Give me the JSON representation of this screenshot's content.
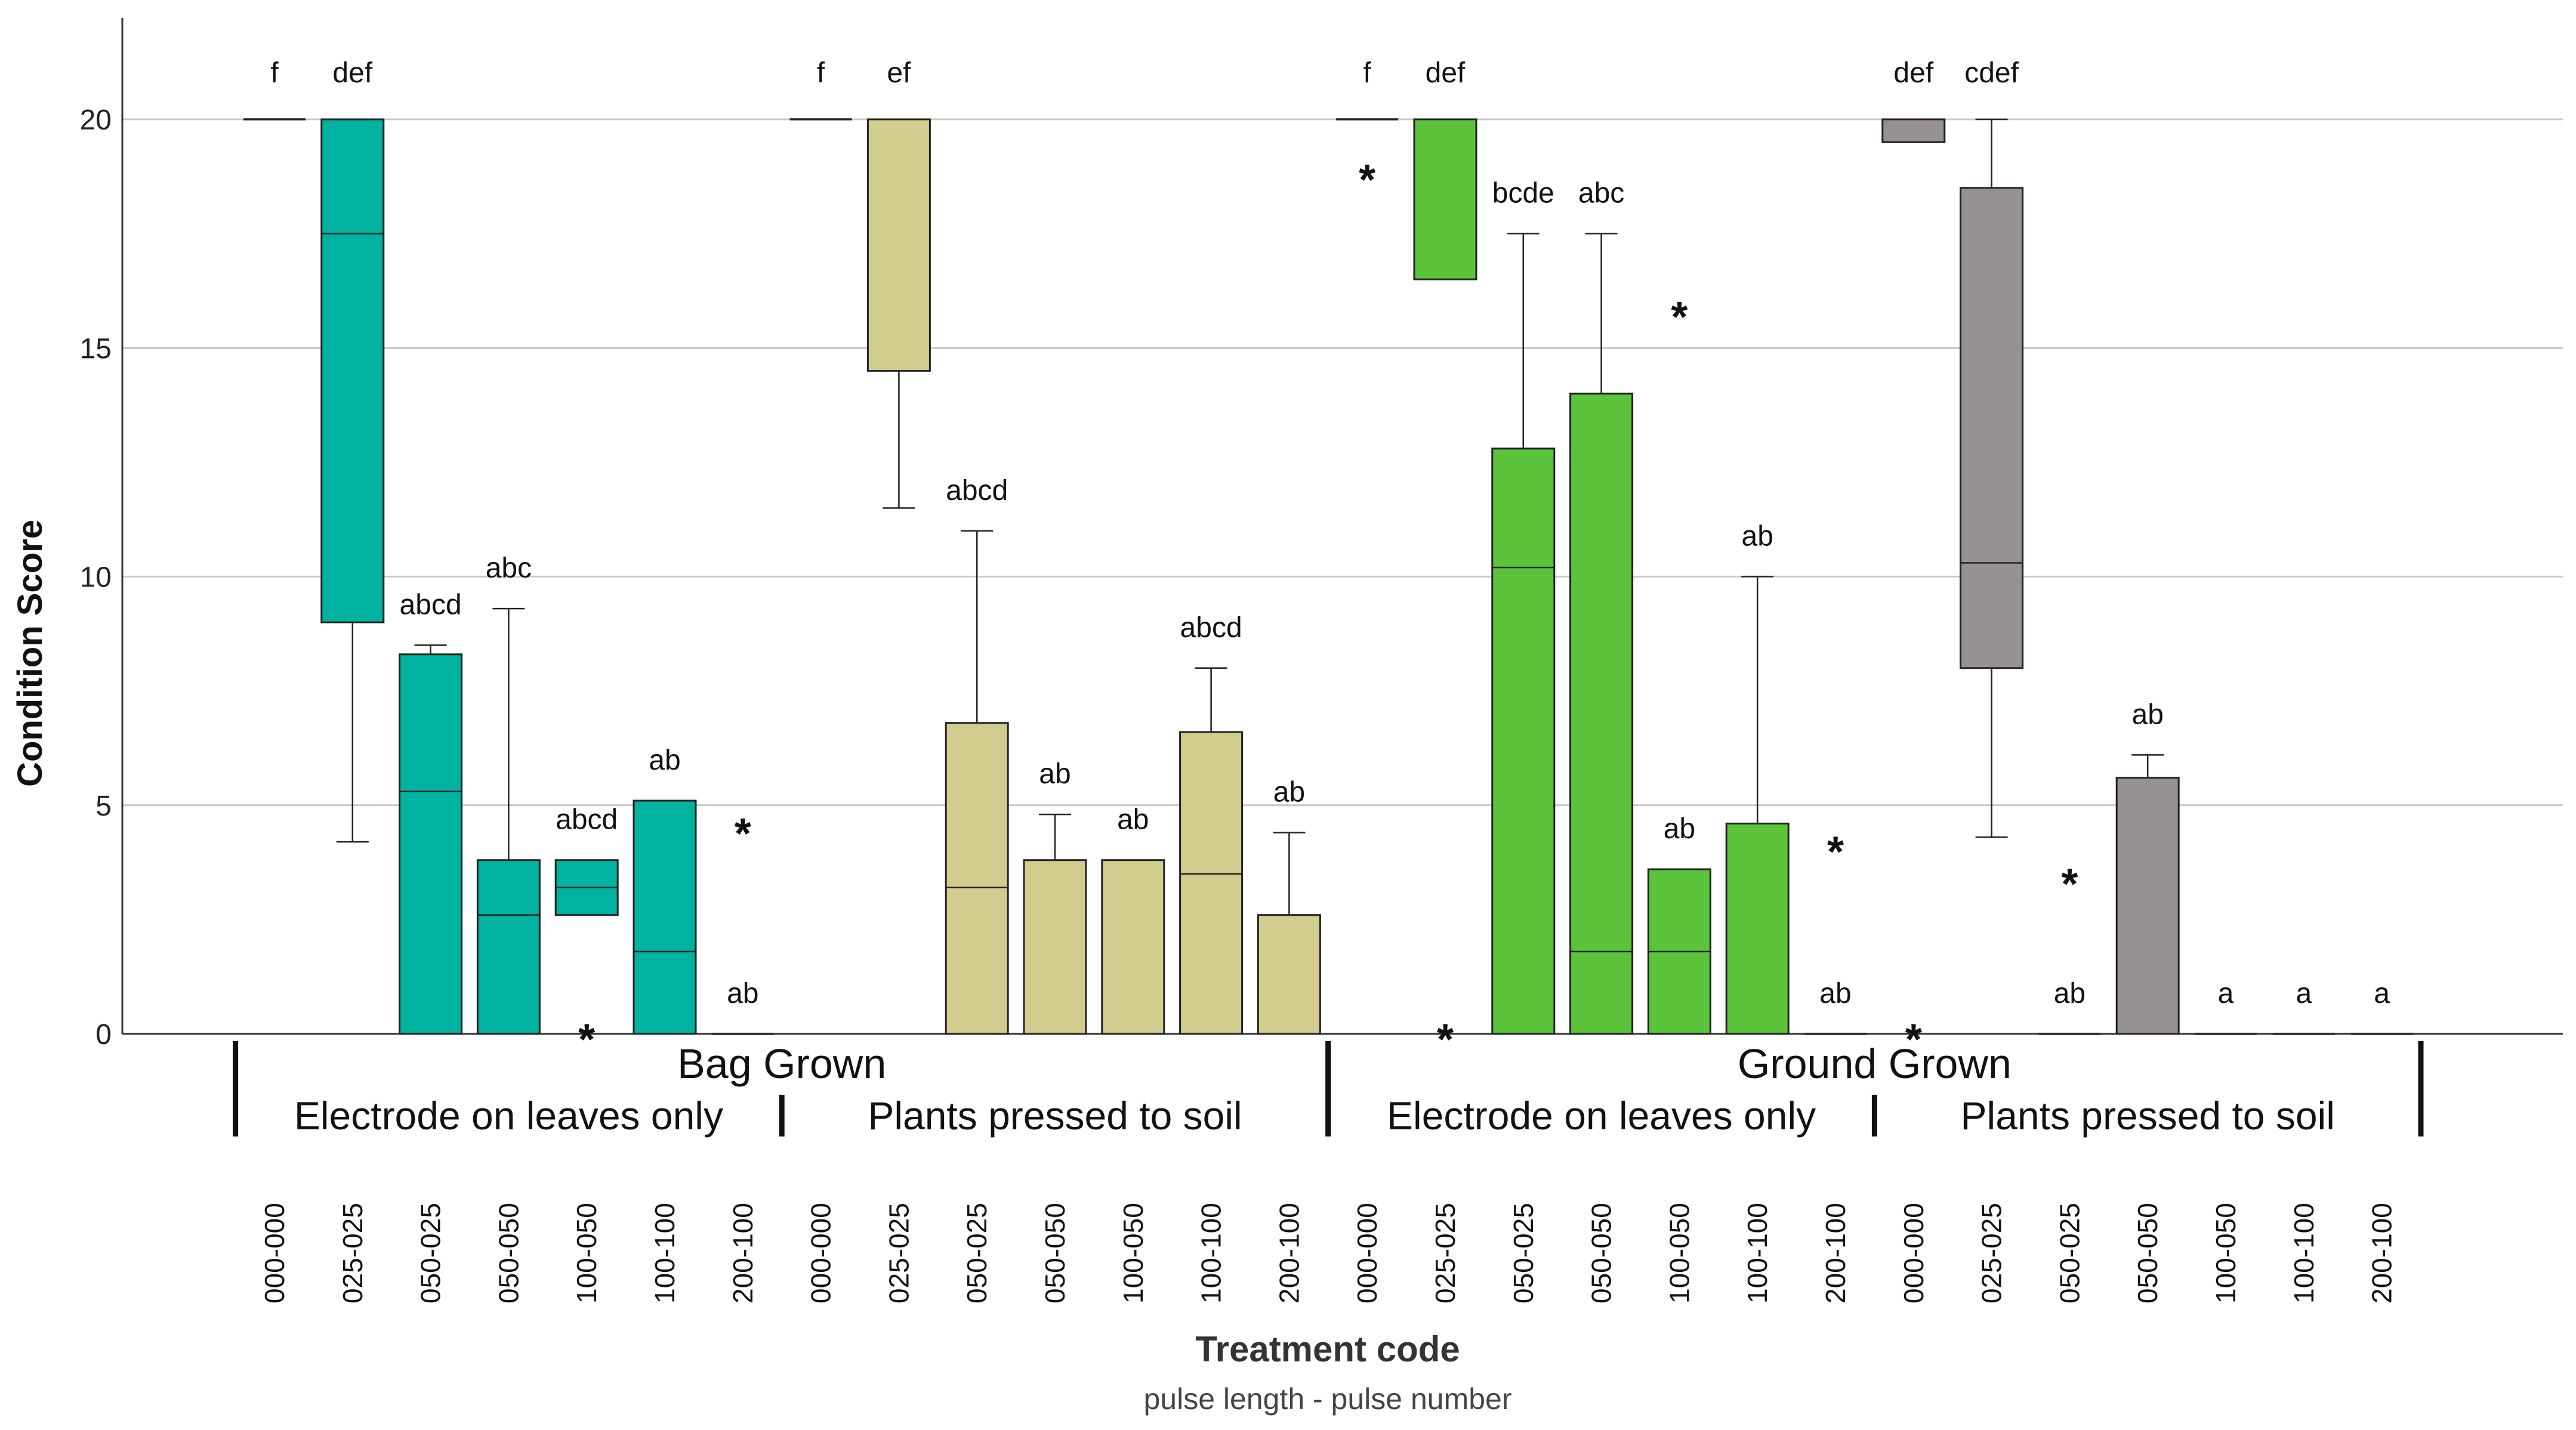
{
  "colors": {
    "bag_leaves": "#00b2a0",
    "bag_soil": "#d2cc8f",
    "ground_leaves": "#5cc43a",
    "ground_soil": "#979191",
    "grid": "#c8c8c8",
    "axis": "#333333"
  },
  "chart_data": {
    "type": "boxplot",
    "title": "",
    "xlabel": "Treatment code",
    "xlabel_sub": "pulse length - pulse number",
    "ylabel": "Condition Score",
    "ylim": [
      0,
      22
    ],
    "yticks": [
      0,
      5,
      10,
      15,
      20
    ],
    "grid": true,
    "outlier_marker": "*",
    "groups": [
      {
        "label": "Bag Grown",
        "subgroups": [
          {
            "label": "Electrode on leaves only",
            "color": "#00b2a0"
          },
          {
            "label": "Plants pressed to soil",
            "color": "#d2cc8f"
          }
        ]
      },
      {
        "label": "Ground Grown",
        "subgroups": [
          {
            "label": "Electrode on leaves only",
            "color": "#5cc43a"
          },
          {
            "label": "Plants pressed to soil",
            "color": "#979191"
          }
        ]
      }
    ],
    "series": [
      {
        "group": "Bag Grown",
        "subgroup": "Electrode on leaves only",
        "color": "#00b2a0",
        "items": [
          {
            "code": "000-000",
            "letter": "f",
            "q1": 20,
            "median": 20,
            "q3": 20,
            "min": 20,
            "max": 20,
            "outliers": []
          },
          {
            "code": "025-025",
            "letter": "def",
            "q1": 9,
            "median": 17.5,
            "q3": 20,
            "min": 4.2,
            "max": 20,
            "outliers": []
          },
          {
            "code": "050-025",
            "letter": "abcd",
            "q1": 0,
            "median": 5.3,
            "q3": 8.3,
            "min": 0,
            "max": 8.5,
            "outliers": []
          },
          {
            "code": "050-050",
            "letter": "abc",
            "q1": 0,
            "median": 2.6,
            "q3": 3.8,
            "min": 0,
            "max": 9.3,
            "outliers": []
          },
          {
            "code": "100-050",
            "letter": "abcd",
            "q1": 2.6,
            "median": 3.2,
            "q3": 3.8,
            "min": 2.6,
            "max": 3.8,
            "outliers": [
              0
            ]
          },
          {
            "code": "100-100",
            "letter": "ab",
            "q1": 0,
            "median": 1.8,
            "q3": 5.1,
            "min": 0,
            "max": 5.1,
            "outliers": []
          },
          {
            "code": "200-100",
            "letter": "ab",
            "q1": 0,
            "median": 0,
            "q3": 0,
            "min": 0,
            "max": 0,
            "outliers": [
              4.5
            ]
          }
        ]
      },
      {
        "group": "Bag Grown",
        "subgroup": "Plants pressed to soil",
        "color": "#d2cc8f",
        "items": [
          {
            "code": "000-000",
            "letter": "f",
            "q1": 20,
            "median": 20,
            "q3": 20,
            "min": 20,
            "max": 20,
            "outliers": []
          },
          {
            "code": "025-025",
            "letter": "ef",
            "q1": 14.5,
            "median": 20,
            "q3": 20,
            "min": 11.5,
            "max": 20,
            "outliers": []
          },
          {
            "code": "050-025",
            "letter": "abcd",
            "q1": 0,
            "median": 3.2,
            "q3": 6.8,
            "min": 0,
            "max": 11,
            "outliers": []
          },
          {
            "code": "050-050",
            "letter": "ab",
            "q1": 0,
            "median": 3.8,
            "q3": 3.8,
            "min": 0,
            "max": 4.8,
            "outliers": []
          },
          {
            "code": "100-050",
            "letter": "ab",
            "q1": 0,
            "median": 3.8,
            "q3": 3.8,
            "min": 0,
            "max": 3.8,
            "outliers": []
          },
          {
            "code": "100-100",
            "letter": "abcd",
            "q1": 0,
            "median": 3.5,
            "q3": 6.6,
            "min": 0,
            "max": 8,
            "outliers": []
          },
          {
            "code": "200-100",
            "letter": "ab",
            "q1": 0,
            "median": 2.6,
            "q3": 2.6,
            "min": 0,
            "max": 4.4,
            "outliers": []
          }
        ]
      },
      {
        "group": "Ground Grown",
        "subgroup": "Electrode on leaves only",
        "color": "#5cc43a",
        "items": [
          {
            "code": "000-000",
            "letter": "f",
            "q1": 20,
            "median": 20,
            "q3": 20,
            "min": 20,
            "max": 20,
            "outliers": [
              18.8
            ]
          },
          {
            "code": "025-025",
            "letter": "def",
            "q1": 16.5,
            "median": 20,
            "q3": 20,
            "min": 16.5,
            "max": 20,
            "outliers": [
              0
            ]
          },
          {
            "code": "050-025",
            "letter": "bcde",
            "q1": 0,
            "median": 10.2,
            "q3": 12.8,
            "min": 0,
            "max": 17.5,
            "outliers": []
          },
          {
            "code": "050-050",
            "letter": "abc",
            "q1": 0,
            "median": 1.8,
            "q3": 14,
            "min": 0,
            "max": 17.5,
            "outliers": []
          },
          {
            "code": "100-050",
            "letter": "ab",
            "q1": 0,
            "median": 1.8,
            "q3": 3.6,
            "min": 0,
            "max": 3.6,
            "outliers": [
              15.8
            ]
          },
          {
            "code": "100-100",
            "letter": "ab",
            "q1": 0,
            "median": 0,
            "q3": 4.6,
            "min": 0,
            "max": 10,
            "outliers": []
          },
          {
            "code": "200-100",
            "letter": "ab",
            "q1": 0,
            "median": 0,
            "q3": 0,
            "min": 0,
            "max": 0,
            "outliers": [
              4.1
            ]
          }
        ]
      },
      {
        "group": "Ground Grown",
        "subgroup": "Plants pressed to soil",
        "color": "#979191",
        "items": [
          {
            "code": "000-000",
            "letter": "def",
            "q1": 19.5,
            "median": 20,
            "q3": 20,
            "min": 19.5,
            "max": 20,
            "outliers": [
              0
            ]
          },
          {
            "code": "025-025",
            "letter": "cdef",
            "q1": 8,
            "median": 10.3,
            "q3": 18.5,
            "min": 4.3,
            "max": 20,
            "outliers": []
          },
          {
            "code": "050-025",
            "letter": "ab",
            "q1": 0,
            "median": 0,
            "q3": 0,
            "min": 0,
            "max": 0,
            "outliers": [
              3.4
            ]
          },
          {
            "code": "050-050",
            "letter": "ab",
            "q1": 0,
            "median": 5.6,
            "q3": 5.6,
            "min": 0,
            "max": 6.1,
            "outliers": []
          },
          {
            "code": "100-050",
            "letter": "a",
            "q1": 0,
            "median": 0,
            "q3": 0,
            "min": 0,
            "max": 0,
            "outliers": []
          },
          {
            "code": "100-100",
            "letter": "a",
            "q1": 0,
            "median": 0,
            "q3": 0,
            "min": 0,
            "max": 0,
            "outliers": []
          },
          {
            "code": "200-100",
            "letter": "a",
            "q1": 0,
            "median": 0,
            "q3": 0,
            "min": 0,
            "max": 0,
            "outliers": []
          }
        ]
      }
    ]
  }
}
